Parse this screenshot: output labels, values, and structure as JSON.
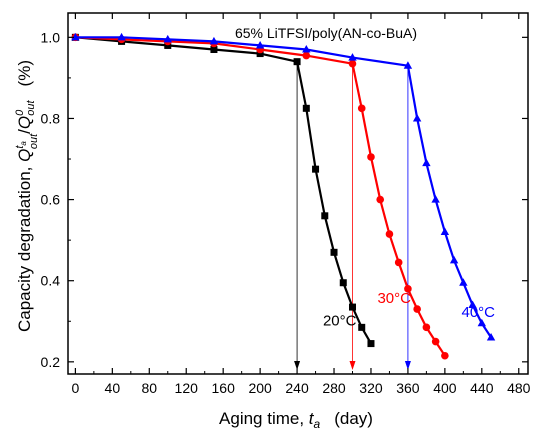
{
  "chart_data": {
    "type": "line",
    "title": "65% LiTFSI/poly(AN-co-BuA)",
    "xlabel": "Aging time, t_a   (day)",
    "xlabel_parts": {
      "main": "Aging time, ",
      "var": "t",
      "sub": "a",
      "unit": "(day)"
    },
    "ylabel_parts": {
      "prefix": "Capacity degradation, ",
      "num": "Q",
      "num_sub": "out",
      "num_sup": "t",
      "num_sup_sub": "a",
      "sep": "/",
      "den": "Q",
      "den_sub": "out",
      "den_sup": "0",
      "unit": "(%)"
    },
    "xlim": [
      -8,
      490
    ],
    "ylim": [
      0.17,
      1.06
    ],
    "xticks": [
      0,
      40,
      80,
      120,
      160,
      200,
      240,
      280,
      320,
      360,
      400,
      440,
      480
    ],
    "yticks": [
      0.2,
      0.4,
      0.6,
      0.8,
      1.0
    ],
    "ytick_labels": [
      "0.2",
      "0.4",
      "0.6",
      "0.8",
      "1.0"
    ],
    "series": [
      {
        "name": "20°C",
        "color": "#000000",
        "marker": "square",
        "x": [
          0,
          50,
          100,
          150,
          200,
          240,
          250,
          260,
          270,
          280,
          290,
          300,
          310,
          320
        ],
        "y": [
          1.0,
          0.99,
          0.98,
          0.97,
          0.96,
          0.94,
          0.825,
          0.675,
          0.56,
          0.47,
          0.395,
          0.335,
          0.285,
          0.245
        ],
        "arrow_x": 240,
        "label_pos": [
          268,
          0.29
        ]
      },
      {
        "name": "30°C",
        "color": "#ff0000",
        "marker": "circle",
        "x": [
          0,
          50,
          100,
          150,
          200,
          250,
          300,
          310,
          320,
          330,
          340,
          350,
          360,
          370,
          380,
          390,
          400
        ],
        "y": [
          1.0,
          0.995,
          0.99,
          0.985,
          0.97,
          0.955,
          0.935,
          0.825,
          0.705,
          0.6,
          0.515,
          0.445,
          0.38,
          0.33,
          0.285,
          0.25,
          0.215
        ],
        "arrow_x": 300,
        "label_pos": [
          327,
          0.345
        ]
      },
      {
        "name": "40°C",
        "color": "#0000ff",
        "marker": "triangle",
        "x": [
          0,
          50,
          100,
          150,
          200,
          250,
          300,
          360,
          370,
          380,
          390,
          400,
          410,
          420,
          430,
          440,
          450
        ],
        "y": [
          1.0,
          1.0,
          0.995,
          0.99,
          0.98,
          0.97,
          0.95,
          0.93,
          0.8,
          0.69,
          0.6,
          0.52,
          0.45,
          0.395,
          0.34,
          0.295,
          0.26
        ],
        "arrow_x": 360,
        "label_pos": [
          418,
          0.31
        ]
      }
    ],
    "grid": false,
    "legend": "none"
  }
}
